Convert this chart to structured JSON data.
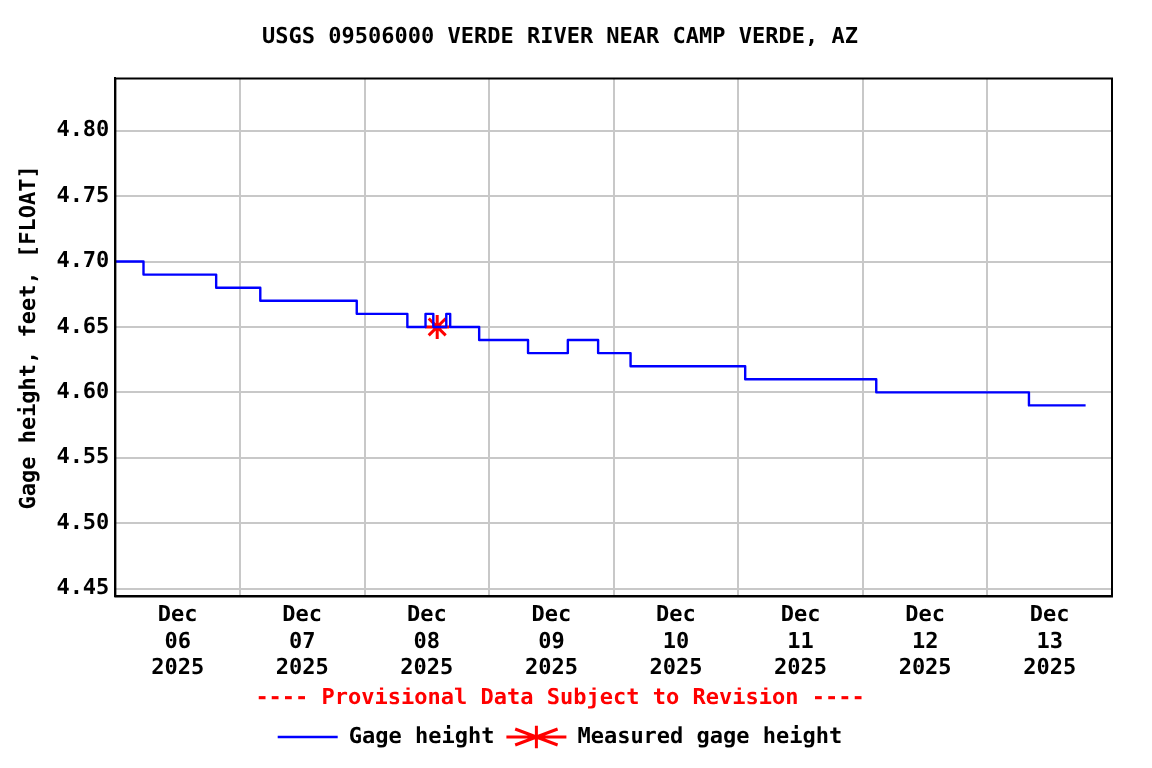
{
  "chart_data": {
    "type": "step",
    "title": "USGS 09506000 VERDE RIVER NEAR CAMP VERDE, AZ",
    "ylabel": "Gage height, feet, [FLOAT]",
    "annotations": [
      "---- Provisional Data Subject to Revision ----"
    ],
    "xlim": [
      "2025-12-06T00:00",
      "2025-12-14T00:00"
    ],
    "xticks": [
      {
        "value": "2025-12-06T12:00",
        "label": "Dec 06 2025"
      },
      {
        "value": "2025-12-07T00:00",
        "label": null
      },
      {
        "value": "2025-12-07T12:00",
        "label": "Dec 07 2025"
      },
      {
        "value": "2025-12-08T00:00",
        "label": null
      },
      {
        "value": "2025-12-08T12:00",
        "label": "Dec 08 2025"
      },
      {
        "value": "2025-12-09T00:00",
        "label": null
      },
      {
        "value": "2025-12-09T12:00",
        "label": "Dec 09 2025"
      },
      {
        "value": "2025-12-10T00:00",
        "label": null
      },
      {
        "value": "2025-12-10T12:00",
        "label": "Dec 10 2025"
      },
      {
        "value": "2025-12-11T00:00",
        "label": null
      },
      {
        "value": "2025-12-11T12:00",
        "label": "Dec 11 2025"
      },
      {
        "value": "2025-12-12T00:00",
        "label": null
      },
      {
        "value": "2025-12-12T12:00",
        "label": "Dec 12 2025"
      },
      {
        "value": "2025-12-13T00:00",
        "label": null
      },
      {
        "value": "2025-12-13T12:00",
        "label": "Dec 13 2025"
      }
    ],
    "ylim": [
      4.444,
      4.84
    ],
    "yticks": [
      {
        "value": 4.45,
        "label": "4.45"
      },
      {
        "value": 4.5,
        "label": "4.50"
      },
      {
        "value": 4.55,
        "label": "4.55"
      },
      {
        "value": 4.6,
        "label": "4.60"
      },
      {
        "value": 4.65,
        "label": "4.65"
      },
      {
        "value": 4.7,
        "label": "4.70"
      },
      {
        "value": 4.75,
        "label": "4.75"
      },
      {
        "value": 4.8,
        "label": "4.80"
      }
    ],
    "grid": true,
    "legend": "bottom",
    "series": [
      {
        "name": "Gage height",
        "color": "#0000ff",
        "marker": "none",
        "x": [
          "2025-12-06T00:00",
          "2025-12-06T05:25",
          "2025-12-06T19:25",
          "2025-12-07T03:55",
          "2025-12-07T22:30",
          "2025-12-08T08:15",
          "2025-12-08T11:45",
          "2025-12-08T13:15",
          "2025-12-08T15:45",
          "2025-12-08T16:30",
          "2025-12-08T22:05",
          "2025-12-09T07:30",
          "2025-12-09T15:10",
          "2025-12-09T21:00",
          "2025-12-10T03:15",
          "2025-12-11T01:20",
          "2025-12-12T02:35",
          "2025-12-13T08:00",
          "2025-12-13T18:55"
        ],
        "values": [
          4.7,
          4.69,
          4.68,
          4.67,
          4.66,
          4.65,
          4.66,
          4.65,
          4.66,
          4.65,
          4.64,
          4.63,
          4.64,
          4.63,
          4.62,
          4.61,
          4.6,
          4.59,
          4.59
        ]
      },
      {
        "name": "Measured gage height",
        "type": "scatter",
        "color": "#ff0000",
        "marker": "cross",
        "x": [
          "2025-12-08T14:00"
        ],
        "values": [
          4.65
        ]
      }
    ]
  }
}
